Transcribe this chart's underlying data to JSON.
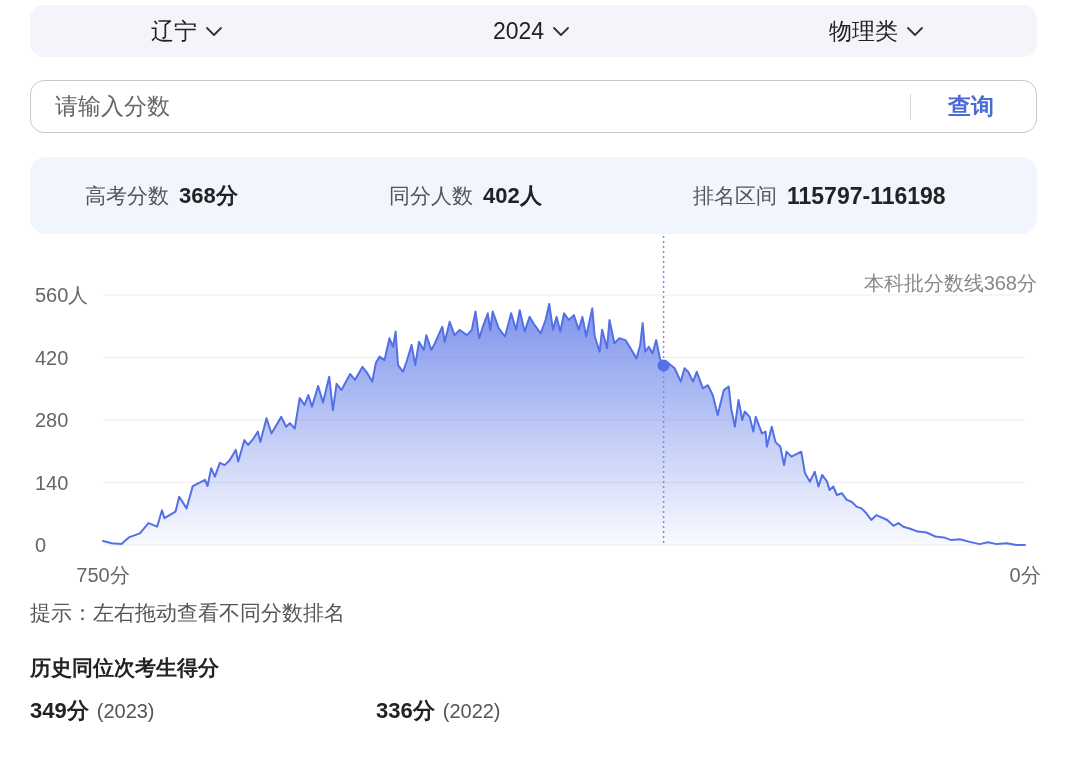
{
  "chart_data": {
    "type": "area",
    "x": [
      750,
      743,
      735,
      729,
      720,
      713,
      706,
      702,
      700,
      691,
      688,
      682,
      677,
      667,
      665,
      662,
      659,
      655,
      651,
      647,
      642,
      640,
      635,
      632,
      628,
      624,
      622,
      617,
      613,
      605,
      601,
      598,
      594,
      590,
      586,
      583,
      580,
      575,
      571,
      566,
      563,
      560,
      556,
      549,
      545,
      539,
      535,
      531,
      528,
      525,
      521,
      517,
      514,
      512,
      510,
      506,
      503,
      499,
      496,
      493,
      489,
      487,
      483,
      480,
      474,
      472,
      468,
      464,
      460,
      454,
      450,
      447,
      444,
      441,
      437,
      435,
      433,
      428,
      423,
      418,
      414,
      411,
      407,
      403,
      399,
      394,
      390,
      387,
      384,
      381,
      378,
      375,
      371,
      367,
      363,
      360,
      357,
      352,
      350,
      346,
      344,
      340,
      338,
      334,
      330,
      325,
      321,
      316,
      313,
      311,
      309,
      306,
      303,
      300,
      297,
      294,
      290,
      285,
      280,
      277,
      274,
      270,
      267,
      262,
      258,
      254,
      250,
      245,
      241,
      239,
      236,
      233,
      230,
      228,
      224,
      221,
      219,
      214,
      211,
      210,
      206,
      203,
      199,
      196,
      194,
      190,
      182,
      179,
      175,
      171,
      168,
      165,
      161,
      159,
      156,
      153,
      149,
      145,
      141,
      137,
      133,
      129,
      125,
      121,
      112,
      107,
      103,
      99,
      94,
      87,
      80,
      73,
      66,
      60,
      53,
      45,
      37,
      30,
      23,
      15,
      7,
      0
    ],
    "series": [
      {
        "color": "#5470e6",
        "values": [
          9,
          4,
          2,
          17,
          26,
          49,
          41,
          78,
          60,
          75,
          108,
          82,
          132,
          146,
          132,
          172,
          153,
          184,
          179,
          190,
          213,
          187,
          235,
          224,
          237,
          254,
          231,
          284,
          250,
          287,
          265,
          273,
          261,
          329,
          314,
          336,
          310,
          356,
          319,
          377,
          302,
          361,
          347,
          383,
          370,
          399,
          385,
          366,
          408,
          422,
          414,
          463,
          444,
          478,
          403,
          388,
          411,
          448,
          403,
          455,
          437,
          470,
          437,
          452,
          489,
          455,
          500,
          470,
          482,
          470,
          482,
          523,
          463,
          489,
          519,
          482,
          523,
          485,
          467,
          519,
          482,
          526,
          478,
          511,
          493,
          474,
          504,
          540,
          482,
          511,
          478,
          519,
          504,
          515,
          482,
          511,
          467,
          530,
          467,
          433,
          482,
          441,
          504,
          452,
          463,
          459,
          441,
          418,
          448,
          497,
          433,
          444,
          429,
          459,
          418,
          402,
          407,
          396,
          366,
          396,
          388,
          366,
          388,
          351,
          358,
          336,
          291,
          347,
          355,
          306,
          265,
          325,
          280,
          299,
          287,
          254,
          287,
          250,
          254,
          220,
          265,
          231,
          220,
          179,
          209,
          198,
          209,
          161,
          142,
          164,
          131,
          157,
          142,
          123,
          131,
          112,
          116,
          101,
          97,
          86,
          82,
          71,
          56,
          67,
          56,
          43,
          49,
          41,
          37,
          30,
          28,
          19,
          17,
          11,
          13,
          7,
          2,
          6,
          2,
          4,
          0,
          0
        ]
      },
      {
        "type": "scatter",
        "color": "#5470e6",
        "x": [
          294
        ],
        "values": [
          402
        ]
      }
    ],
    "xlim": [
      750,
      0
    ],
    "xticks": [
      {
        "value": 750,
        "label": "750分"
      },
      {
        "value": 0,
        "label": "0分"
      }
    ],
    "ylim": [
      0,
      560
    ],
    "yticks": [
      0,
      140,
      280,
      420,
      {
        "value": 560,
        "label": "560人"
      }
    ],
    "grid": "y",
    "ref_lines": [
      {
        "axis": "x",
        "value": 294,
        "color": "#7b8fd9",
        "line_style": "dotted"
      }
    ],
    "annotations": [
      "辽宁",
      "2024",
      "物理类",
      "请输入分数",
      "查询",
      "高考分数",
      "368分",
      "同分人数",
      "402人",
      "排名区间",
      "115797-116198",
      "本科批分数线368分",
      "提示：左右拖动查看不同分数排名",
      "历史同位次考生得分",
      "349分",
      "(2023)",
      "336分",
      "(2022)"
    ]
  }
}
